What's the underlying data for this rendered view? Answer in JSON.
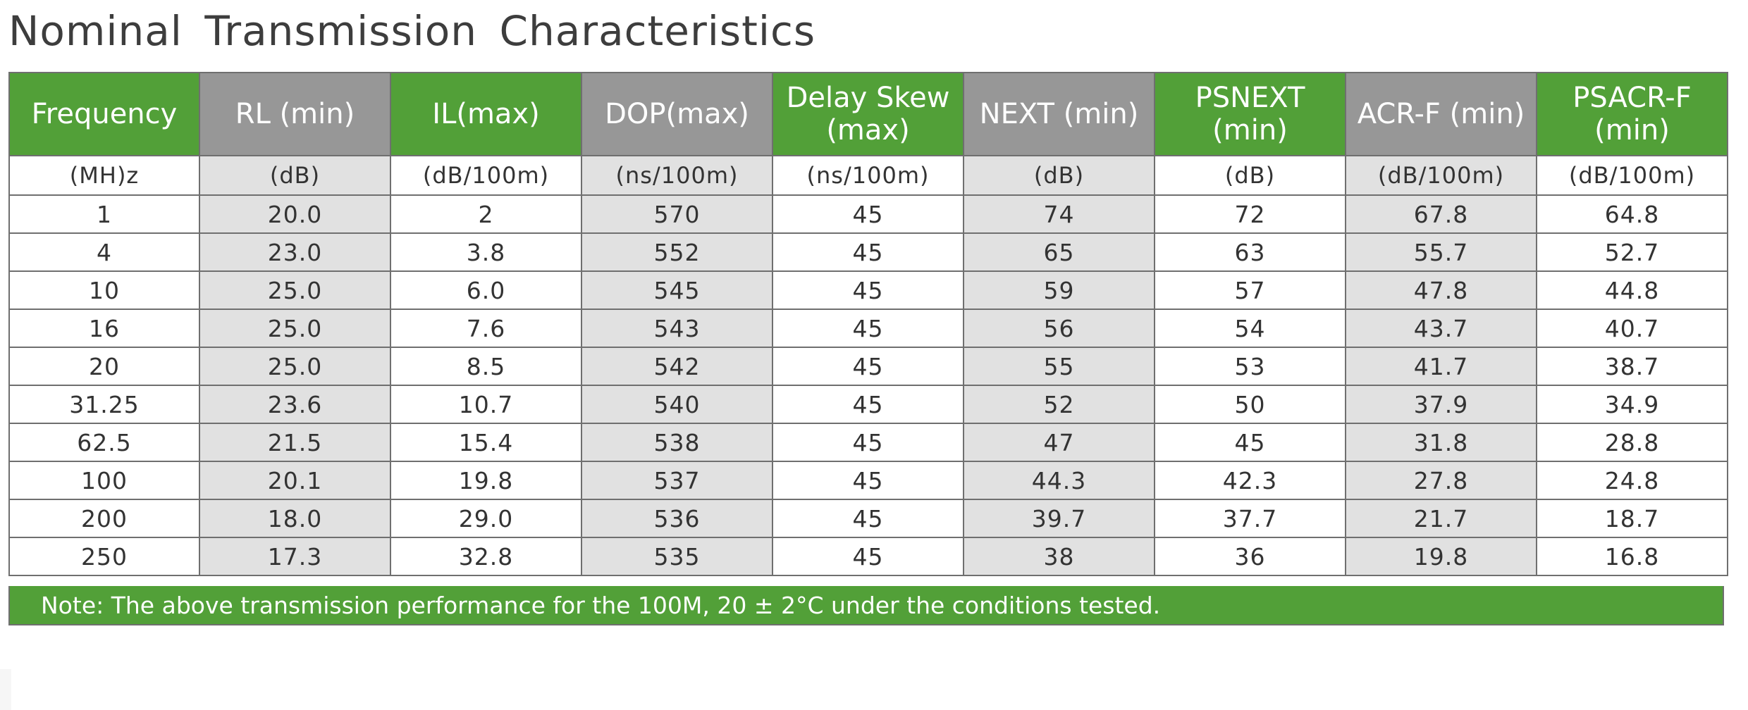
{
  "title": "Nominal  Transmission  Characteristics",
  "header": {
    "columns": [
      {
        "label": "Frequency",
        "style": "green"
      },
      {
        "label": "RL (min)",
        "style": "gray"
      },
      {
        "label": "IL(max)",
        "style": "green"
      },
      {
        "label": "DOP(max)",
        "style": "gray"
      },
      {
        "label": "Delay Skew (max)",
        "style": "green"
      },
      {
        "label": "NEXT (min)",
        "style": "gray"
      },
      {
        "label": "PSNEXT (min)",
        "style": "green"
      },
      {
        "label": "ACR-F (min)",
        "style": "gray"
      },
      {
        "label": "PSACR-F (min)",
        "style": "green"
      }
    ]
  },
  "units": [
    "(MH)z",
    "(dB)",
    "(dB/100m)",
    "(ns/100m)",
    "(ns/100m)",
    "(dB)",
    "(dB)",
    "(dB/100m)",
    "(dB/100m)"
  ],
  "rows": [
    [
      "1",
      "20.0",
      "2",
      "570",
      "45",
      "74",
      "72",
      "67.8",
      "64.8"
    ],
    [
      "4",
      "23.0",
      "3.8",
      "552",
      "45",
      "65",
      "63",
      "55.7",
      "52.7"
    ],
    [
      "10",
      "25.0",
      "6.0",
      "545",
      "45",
      "59",
      "57",
      "47.8",
      "44.8"
    ],
    [
      "16",
      "25.0",
      "7.6",
      "543",
      "45",
      "56",
      "54",
      "43.7",
      "40.7"
    ],
    [
      "20",
      "25.0",
      "8.5",
      "542",
      "45",
      "55",
      "53",
      "41.7",
      "38.7"
    ],
    [
      "31.25",
      "23.6",
      "10.7",
      "540",
      "45",
      "52",
      "50",
      "37.9",
      "34.9"
    ],
    [
      "62.5",
      "21.5",
      "15.4",
      "538",
      "45",
      "47",
      "45",
      "31.8",
      "28.8"
    ],
    [
      "100",
      "20.1",
      "19.8",
      "537",
      "45",
      "44.3",
      "42.3",
      "27.8",
      "24.8"
    ],
    [
      "200",
      "18.0",
      "29.0",
      "536",
      "45",
      "39.7",
      "37.7",
      "21.7",
      "18.7"
    ],
    [
      "250",
      "17.3",
      "32.8",
      "535",
      "45",
      "38",
      "36",
      "19.8",
      "16.8"
    ]
  ],
  "note": "Note: The above transmission performance for the 100M, 20 ± 2°C under the conditions tested.",
  "colors": {
    "header_green": "#52a038",
    "header_gray": "#979797",
    "shaded_column": "#e1e1e1",
    "border": "#6f6f6f"
  }
}
